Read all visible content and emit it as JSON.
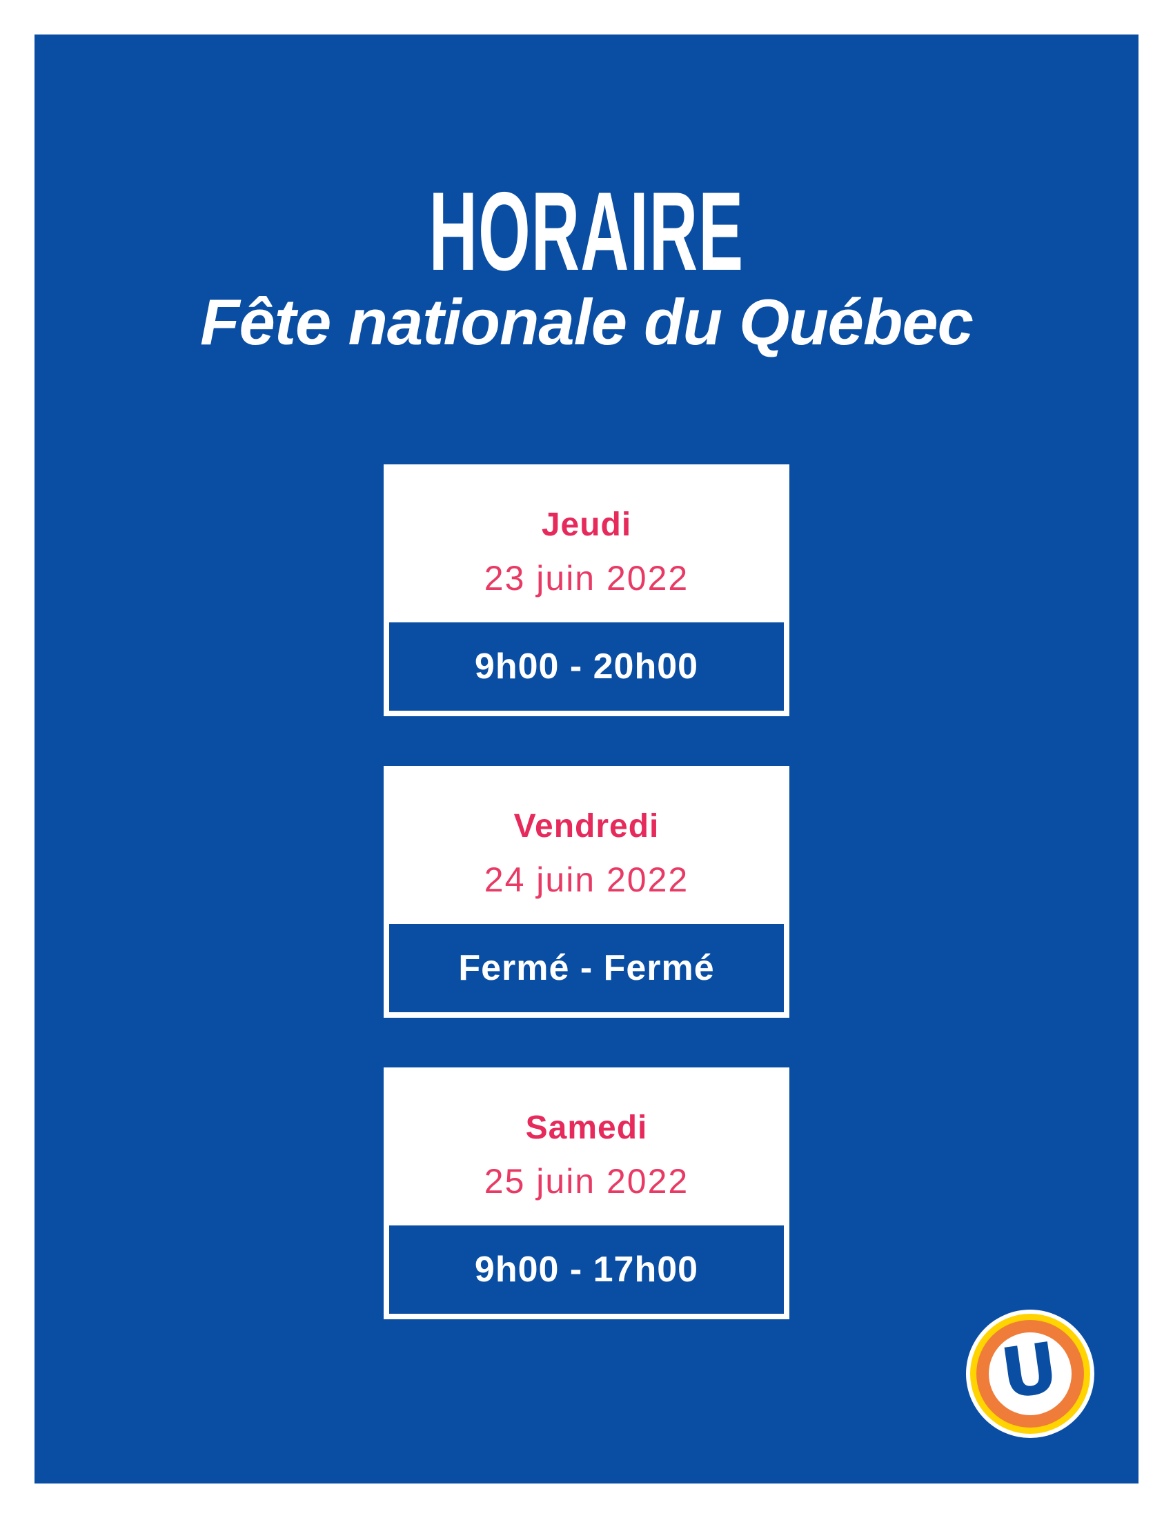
{
  "poster": {
    "title": "HORAIRE",
    "subtitle": "Fête nationale du Québec"
  },
  "schedule": [
    {
      "day": "Jeudi",
      "date": "23 juin 2022",
      "hours": "9h00 - 20h00"
    },
    {
      "day": "Vendredi",
      "date": "24 juin 2022",
      "hours": "Fermé - Fermé"
    },
    {
      "day": "Samedi",
      "date": "25 juin 2022",
      "hours": "9h00 - 17h00"
    }
  ],
  "logo": {
    "letter": "U"
  },
  "colors": {
    "panel_blue": "#0A4EA4",
    "day_pink": "#E62B5C",
    "date_pink": "#E83A64",
    "band_blue": "#0A4EA4",
    "logo_yellow": "#FFD400",
    "logo_orange": "#F07C3A",
    "white": "#FFFFFF"
  }
}
